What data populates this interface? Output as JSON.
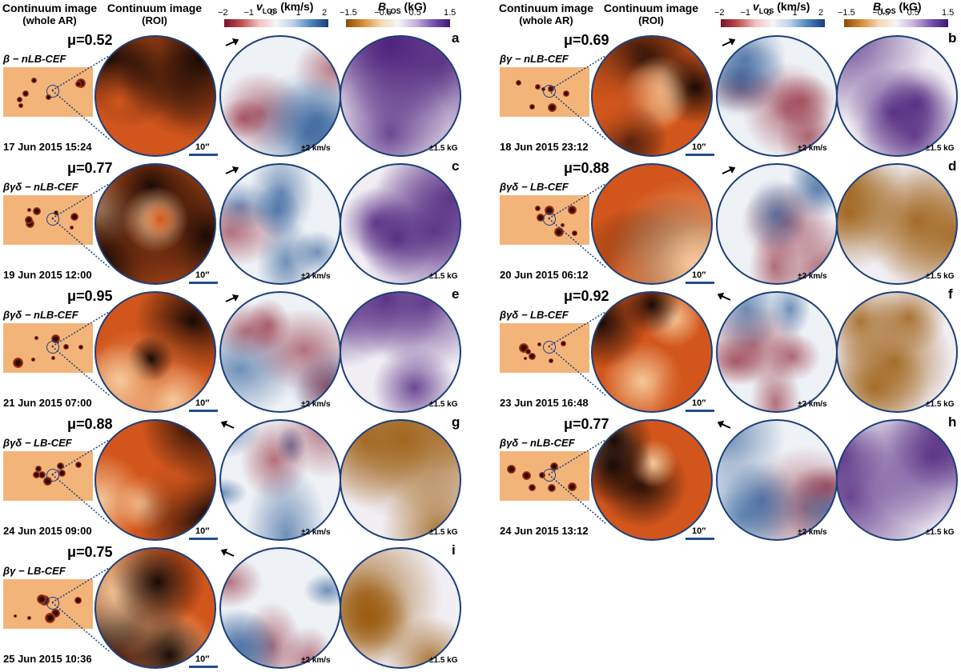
{
  "headers": {
    "whole_ar": "Continuum image",
    "whole_ar_sub": "(whole AR)",
    "roi": "Continuum image",
    "roi_sub": "(ROI)",
    "vlos_label_main": "v",
    "vlos_label_sub": "LOS",
    "vlos_label_unit": " (km/s)",
    "blos_label_main": "B",
    "blos_label_sub": "LOS",
    "blos_label_unit": " (kG)"
  },
  "vlos_ticks": [
    "−2",
    "−1",
    "0",
    "1",
    "2"
  ],
  "blos_ticks": [
    "−1.5",
    "−0.5",
    "0.5",
    "1.5"
  ],
  "scale_label": "10′′",
  "vlos_range": "±2 km/s",
  "blos_range": "±1.5 kG",
  "colors": {
    "continuum_dark": "#1a0a05",
    "continuum_mid": "#d2561c",
    "continuum_light": "#f6c89a",
    "vlos_neg": "#8b1b2e",
    "vlos_pos": "#1d4f8f",
    "blos_neg": "#9a5a0c",
    "blos_pos": "#4b1e7a",
    "circle_border": "#1c3f7a"
  },
  "panels": [
    {
      "letter": "a",
      "mu": "μ=0.52",
      "cls": "β − nLB-CEF",
      "date": "17 Jun 2015 15:24",
      "arrow": "right-up"
    },
    {
      "letter": "c",
      "mu": "μ=0.77",
      "cls": "βγδ − nLB-CEF",
      "date": "19 Jun 2015 12:00",
      "arrow": "right-up"
    },
    {
      "letter": "e",
      "mu": "μ=0.95",
      "cls": "βγδ − nLB-CEF",
      "date": "21 Jun 2015 07:00",
      "arrow": "right-up"
    },
    {
      "letter": "g",
      "mu": "μ=0.88",
      "cls": "βγδ − LB-CEF",
      "date": "24 Jun 2015 09:00",
      "arrow": "left-up"
    },
    {
      "letter": "i",
      "mu": "μ=0.75",
      "cls": "βγ − LB-CEF",
      "date": "25 Jun 2015 10:36",
      "arrow": "left-up"
    },
    {
      "letter": "b",
      "mu": "μ=0.69",
      "cls": "βγ − nLB-CEF",
      "date": "18 Jun 2015 23:12",
      "arrow": "right-up"
    },
    {
      "letter": "d",
      "mu": "μ=0.88",
      "cls": "βγδ − LB-CEF",
      "date": "20 Jun 2015 06:12",
      "arrow": "right-up"
    },
    {
      "letter": "f",
      "mu": "μ=0.92",
      "cls": "βγδ − LB-CEF",
      "date": "23 Jun 2015 16:48",
      "arrow": "left-up"
    },
    {
      "letter": "h",
      "mu": "μ=0.77",
      "cls": "βγδ − nLB-CEF",
      "date": "24 Jun 2015 13:12",
      "arrow": "left-up"
    }
  ]
}
